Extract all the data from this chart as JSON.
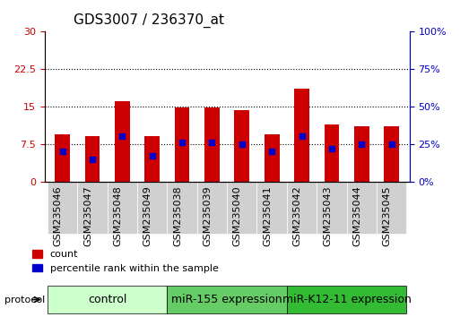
{
  "title": "GDS3007 / 236370_at",
  "samples": [
    "GSM235046",
    "GSM235047",
    "GSM235048",
    "GSM235049",
    "GSM235038",
    "GSM235039",
    "GSM235040",
    "GSM235041",
    "GSM235042",
    "GSM235043",
    "GSM235044",
    "GSM235045"
  ],
  "count_values": [
    9.5,
    9.0,
    16.0,
    9.0,
    14.8,
    14.8,
    14.2,
    9.5,
    18.5,
    11.5,
    11.0,
    11.0
  ],
  "percentile_values": [
    20,
    15,
    30,
    17,
    26,
    26,
    25,
    20,
    30,
    22,
    25,
    25
  ],
  "bar_color": "#cc0000",
  "percentile_color": "#0000cc",
  "ylim_left": [
    0,
    30
  ],
  "ylim_right": [
    0,
    100
  ],
  "yticks_left": [
    0,
    7.5,
    15,
    22.5,
    30
  ],
  "yticks_right": [
    0,
    25,
    50,
    75,
    100
  ],
  "ytick_labels_left": [
    "0",
    "7.5",
    "15",
    "22.5",
    "30"
  ],
  "ytick_labels_right": [
    "0%",
    "25%",
    "50%",
    "75%",
    "100%"
  ],
  "groups": [
    {
      "label": "control",
      "start": 0,
      "end": 4,
      "color": "#ccffcc"
    },
    {
      "label": "miR-155 expression",
      "start": 4,
      "end": 8,
      "color": "#66cc66"
    },
    {
      "label": "miR-K12-11 expression",
      "start": 8,
      "end": 12,
      "color": "#33bb33"
    }
  ],
  "protocol_label": "protocol",
  "legend_count_label": "count",
  "legend_percentile_label": "percentile rank within the sample",
  "grid_color": "#000000",
  "bar_width": 0.5,
  "title_fontsize": 11,
  "tick_fontsize": 8,
  "label_fontsize": 8,
  "group_label_fontsize": 9
}
